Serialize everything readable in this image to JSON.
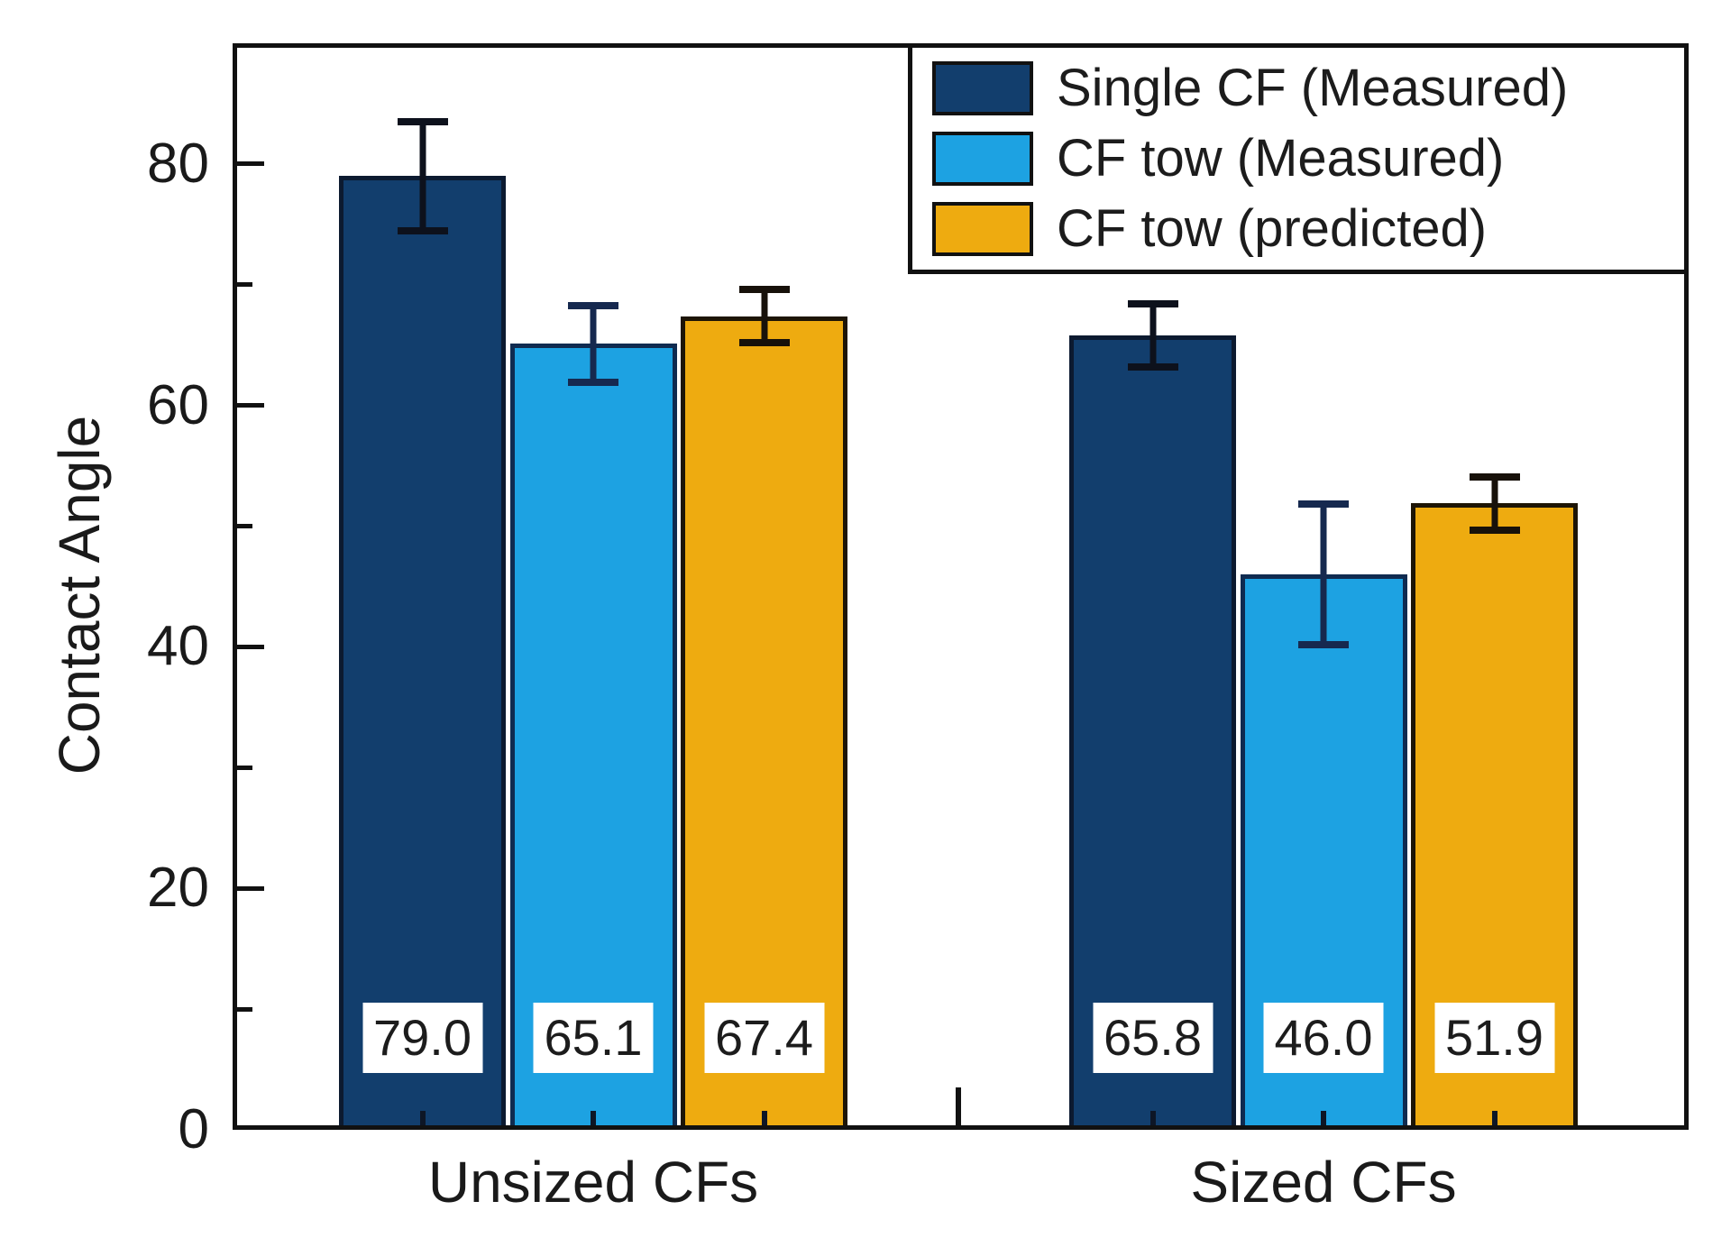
{
  "chart_data": {
    "type": "bar",
    "title": "",
    "xlabel": "",
    "ylabel": "Contact Angle",
    "categories": [
      "Unsized CFs",
      "Sized CFs"
    ],
    "series": [
      {
        "name": "Single CF (Measured)",
        "color": "#123e6d",
        "border_color": "#0c1a30",
        "error_color": "#0d111c",
        "values": [
          79.0,
          65.8
        ],
        "errors": [
          4.8,
          2.9
        ],
        "labels": [
          "79.0",
          "65.8"
        ]
      },
      {
        "name": "CF tow (Measured)",
        "color": "#1da2e2",
        "border_color": "#0f2b50",
        "error_color": "#16294f",
        "values": [
          65.1,
          46.0
        ],
        "errors": [
          3.5,
          6.1
        ],
        "labels": [
          "65.1",
          "46.0"
        ]
      },
      {
        "name": "CF tow (predicted)",
        "color": "#eeab10",
        "border_color": "#1d1506",
        "error_color": "#17110a",
        "values": [
          67.4,
          51.9
        ],
        "errors": [
          2.5,
          2.5
        ],
        "labels": [
          "67.4",
          "51.9"
        ]
      }
    ],
    "ylim": [
      0,
      90
    ],
    "yticks": [
      0,
      20,
      40,
      60,
      80
    ],
    "minor_yticks": [
      10,
      30,
      50,
      70
    ],
    "grid": false,
    "legend_position": "top-right"
  }
}
